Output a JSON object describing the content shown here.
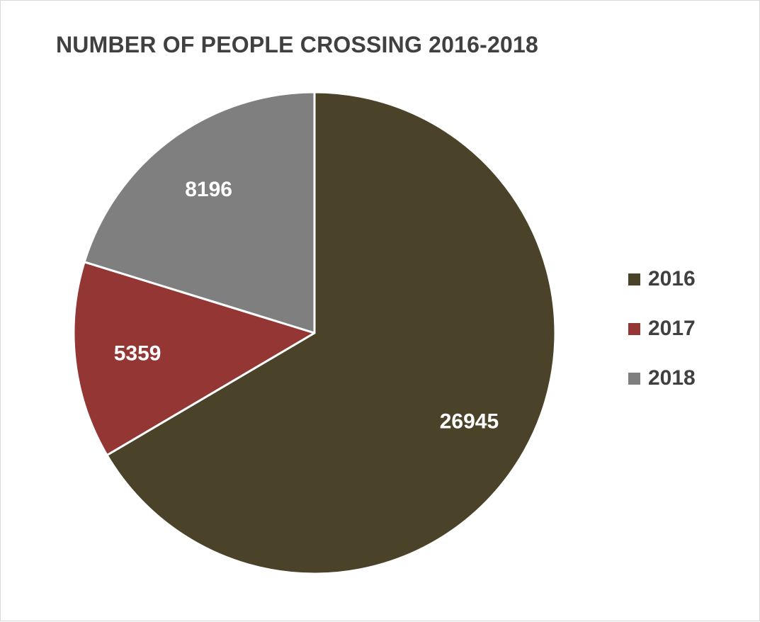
{
  "chart_data": {
    "type": "pie",
    "title": "NUMBER OF PEOPLE CROSSING 2016-2018",
    "categories": [
      "2016",
      "2017",
      "2018"
    ],
    "values": [
      26945,
      5359,
      8196
    ],
    "data_labels": [
      "26945",
      "5359",
      "8196"
    ],
    "colors": [
      "#4a432a",
      "#943634",
      "#7f7f7f"
    ],
    "start_angle": "12 o'clock",
    "direction": "clockwise",
    "legend": "right"
  }
}
